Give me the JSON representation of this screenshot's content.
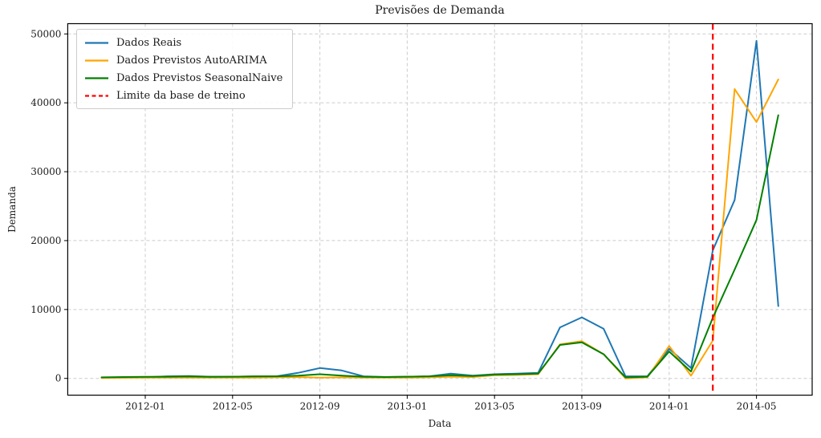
{
  "title": "Previsões de Demanda",
  "axes": {
    "xlabel": "Data",
    "ylabel": "Demanda",
    "x_tick_labels": [
      "2012-01",
      "2012-05",
      "2012-09",
      "2013-01",
      "2013-05",
      "2013-09",
      "2014-01",
      "2014-05"
    ],
    "y_tick_labels": [
      "0",
      "10000",
      "20000",
      "30000",
      "40000",
      "50000"
    ],
    "y_tick_values": [
      0,
      10000,
      20000,
      30000,
      40000,
      50000
    ]
  },
  "legend": {
    "entries": [
      {
        "label": "Dados Reais",
        "color": "#1f77b4",
        "dash": ""
      },
      {
        "label": "Dados Previstos AutoARIMA",
        "color": "#ffa500",
        "dash": ""
      },
      {
        "label": "Dados Previstos SeasonalNaive",
        "color": "#008000",
        "dash": ""
      },
      {
        "label": "Limite da base de treino",
        "color": "#ff0000",
        "dash": "5 3.5"
      }
    ]
  },
  "colors": {
    "real": "#1f77b4",
    "autoarima": "#ffa500",
    "seasonalnaive": "#008000",
    "train_limit": "#ff0000",
    "grid": "#cccccc",
    "spine": "#000000",
    "text": "#1a1a1a"
  },
  "chart_data": {
    "type": "line",
    "x": [
      "2011-11",
      "2011-12",
      "2012-01",
      "2012-02",
      "2012-03",
      "2012-04",
      "2012-05",
      "2012-06",
      "2012-07",
      "2012-08",
      "2012-09",
      "2012-10",
      "2012-11",
      "2012-12",
      "2013-01",
      "2013-02",
      "2013-03",
      "2013-04",
      "2013-05",
      "2013-06",
      "2013-07",
      "2013-08",
      "2013-09",
      "2013-10",
      "2013-11",
      "2013-12",
      "2014-01",
      "2014-02",
      "2014-03",
      "2014-04",
      "2014-05",
      "2014-06"
    ],
    "series": [
      {
        "name": "Dados Reais",
        "color": "#1f77b4",
        "values": [
          100,
          150,
          150,
          300,
          350,
          250,
          250,
          300,
          300,
          800,
          1500,
          1150,
          300,
          200,
          250,
          300,
          700,
          400,
          600,
          700,
          800,
          7400,
          8860,
          7200,
          300,
          300,
          4300,
          1500,
          18600,
          25900,
          49000,
          10500
        ]
      },
      {
        "name": "Dados Previstos AutoARIMA",
        "color": "#ffa500",
        "values": [
          50,
          80,
          100,
          120,
          100,
          100,
          100,
          120,
          150,
          200,
          100,
          150,
          100,
          100,
          120,
          150,
          250,
          200,
          450,
          500,
          600,
          4950,
          5400,
          3500,
          0,
          150,
          4700,
          400,
          5500,
          42000,
          37200,
          43400
        ]
      },
      {
        "name": "Dados Previstos SeasonalNaive",
        "color": "#008000",
        "values": [
          150,
          200,
          230,
          250,
          280,
          230,
          250,
          280,
          300,
          400,
          600,
          400,
          250,
          200,
          250,
          300,
          450,
          350,
          550,
          600,
          700,
          4860,
          5240,
          3500,
          150,
          250,
          3900,
          1000,
          8800,
          15800,
          23000,
          38200
        ]
      }
    ],
    "vline": {
      "x": "2014-03",
      "label": "Limite da base de treino",
      "color": "#ff0000",
      "style": "dashed"
    },
    "title": "Previsões de Demanda",
    "xlabel": "Data",
    "ylabel": "Demanda",
    "ylim": [
      -1900,
      51600
    ],
    "grid": true,
    "legend_position": "upper left"
  }
}
